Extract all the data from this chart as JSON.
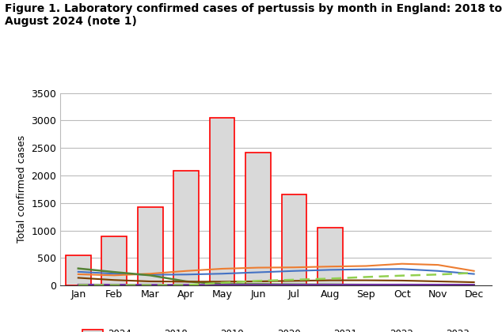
{
  "title_line1": "Figure 1. Laboratory confirmed cases of pertussis by month in England: 2018 to",
  "title_line2": "August 2024 (note 1)",
  "ylabel": "Total confirmed cases",
  "months": [
    "Jan",
    "Feb",
    "Mar",
    "Apr",
    "May",
    "Jun",
    "Jul",
    "Aug",
    "Sep",
    "Oct",
    "Nov",
    "Dec"
  ],
  "bars_2024": [
    550,
    900,
    1420,
    2080,
    3050,
    2420,
    1660,
    1045,
    null,
    null,
    null,
    null
  ],
  "line_2018": [
    250,
    215,
    195,
    200,
    215,
    240,
    265,
    285,
    295,
    300,
    265,
    210
  ],
  "line_2019": [
    205,
    185,
    215,
    265,
    305,
    325,
    330,
    345,
    355,
    395,
    375,
    265
  ],
  "line_2020": [
    310,
    245,
    185,
    75,
    25,
    25,
    20,
    18,
    15,
    13,
    12,
    12
  ],
  "line_2021": [
    140,
    100,
    75,
    70,
    70,
    75,
    85,
    95,
    95,
    90,
    75,
    60
  ],
  "line_2022": [
    18,
    16,
    15,
    14,
    14,
    14,
    15,
    16,
    17,
    18,
    17,
    16
  ],
  "line_2023": [
    8,
    8,
    8,
    8,
    50,
    85,
    105,
    125,
    155,
    180,
    200,
    230
  ],
  "bar_face_color": "#d9d9d9",
  "bar_edge_color": "#ff0000",
  "color_2018": "#4472c4",
  "color_2019": "#ed7d31",
  "color_2020": "#548235",
  "color_2021": "#7b3f00",
  "color_2022": "#7030a0",
  "color_2023": "#92d050",
  "ylim": [
    0,
    3500
  ],
  "yticks": [
    0,
    500,
    1000,
    1500,
    2000,
    2500,
    3000,
    3500
  ],
  "background_color": "#ffffff",
  "title_fontsize": 10,
  "axis_fontsize": 9,
  "tick_fontsize": 9
}
